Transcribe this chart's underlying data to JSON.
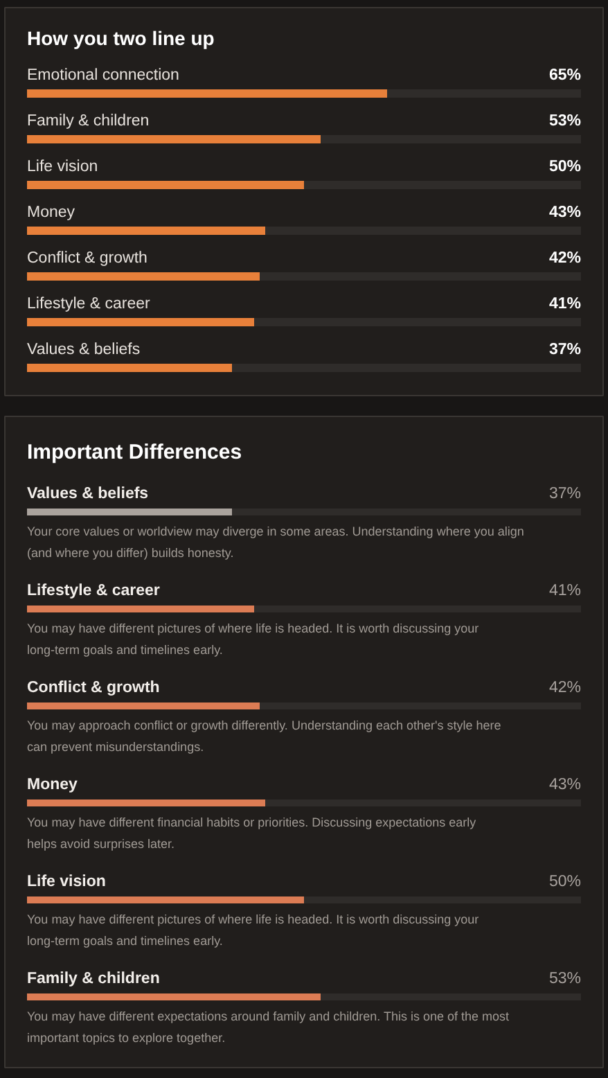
{
  "chart_data": [
    {
      "type": "bar",
      "orientation": "horizontal",
      "title": "How you two line up",
      "categories": [
        "Emotional connection",
        "Family & children",
        "Life vision",
        "Money",
        "Conflict & growth",
        "Lifestyle & career",
        "Values & beliefs"
      ],
      "values": [
        65,
        53,
        50,
        43,
        42,
        41,
        37
      ],
      "value_labels": [
        "65%",
        "53%",
        "50%",
        "43%",
        "42%",
        "41%",
        "37%"
      ],
      "color": "#e8803a",
      "xlim": [
        0,
        100
      ],
      "tick_labels": "y"
    },
    {
      "type": "bar",
      "orientation": "horizontal",
      "title": "Important Differences",
      "categories": [
        "Values & beliefs",
        "Lifestyle & career",
        "Conflict & growth",
        "Money",
        "Life vision",
        "Family & children"
      ],
      "values": [
        37,
        41,
        42,
        43,
        50,
        53
      ],
      "value_labels": [
        "37%",
        "41%",
        "42%",
        "43%",
        "50%",
        "53%"
      ],
      "colors": [
        "#aaa39d",
        "#dc7c54",
        "#dc7c54",
        "#dc7c54",
        "#dc7c54",
        "#dc7c54"
      ],
      "xlim": [
        0,
        100
      ],
      "tick_labels": "y",
      "annotations": [
        "Your core values or worldview may diverge in some areas. Understanding where you align (and where you differ) builds honesty.",
        "You may have different pictures of where life is headed. It is worth discussing your long-term goals and timelines early.",
        "You may approach conflict or growth differently. Understanding each other's style here can prevent misunderstandings.",
        "You may have different financial habits or priorities. Discussing expectations early helps avoid surprises later.",
        "You may have different pictures of where life is headed. It is worth discussing your long-term goals and timelines early.",
        "You may have different expectations around family and children. This is one of the most important topics to explore together."
      ]
    }
  ]
}
